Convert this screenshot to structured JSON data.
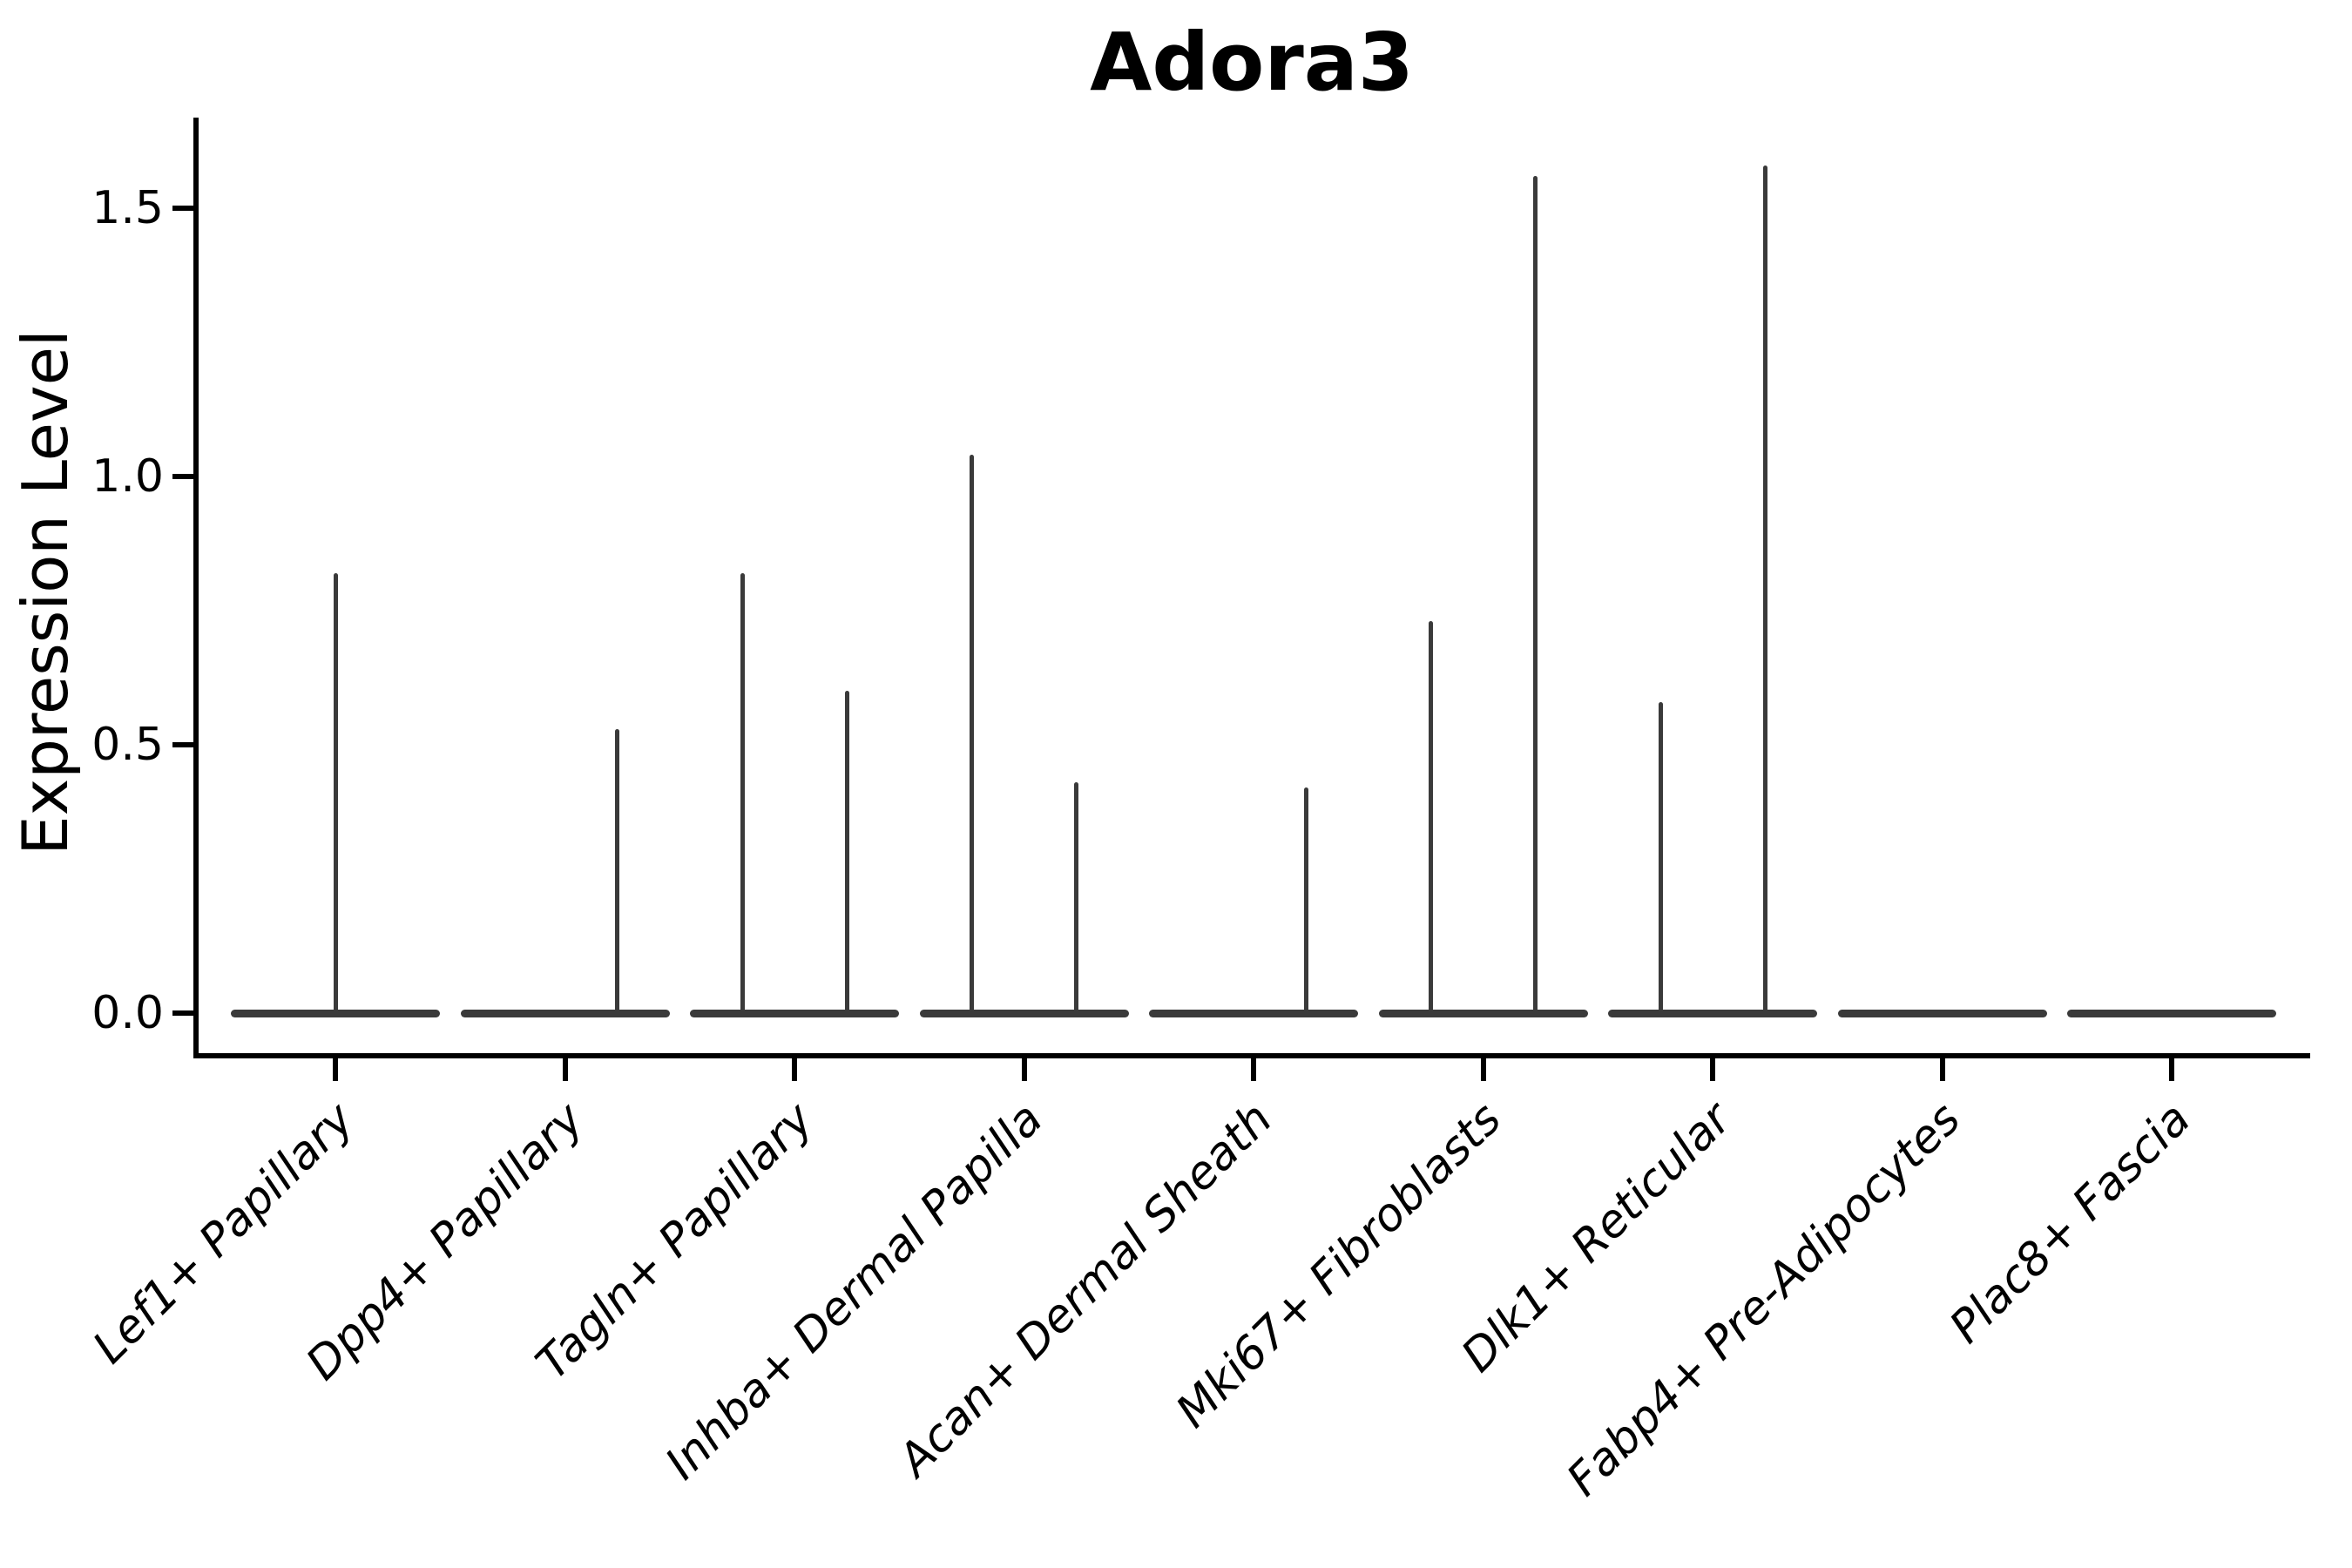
{
  "title": "Adora3",
  "chart_data": {
    "type": "violin",
    "title": "Adora3",
    "ylabel": "Expression Level",
    "xlabel": "",
    "y_ticks": [
      0.0,
      0.5,
      1.0,
      1.5
    ],
    "y_tick_labels": [
      "0.0",
      "0.5",
      "1.0",
      "1.5"
    ],
    "ylim": [
      -0.08,
      1.67
    ],
    "grid": false,
    "legend": false,
    "x_label_rotation_deg": 45,
    "x_label_style": "italic",
    "violin_color": "#3a3a3a",
    "axis_color": "#000000",
    "categories": [
      "Lef1+ Papillary",
      "Dpp4+ Papillary",
      "Tagln+ Papillary",
      "Inhba+ Dermal Papilla",
      "Acan+ Dermal Sheath",
      "Mki67+ Fibroblasts",
      "Dlk1+ Reticular",
      "Fabp4+ Pre-Adipocytes",
      "Plac8+ Fascia"
    ],
    "series": [
      {
        "category": "Lef1+ Papillary",
        "baseline_value": 0.0,
        "spikes": [
          {
            "pos": "center",
            "max": 0.82
          }
        ]
      },
      {
        "category": "Dpp4+ Papillary",
        "baseline_value": 0.0,
        "spikes": [
          {
            "pos": "right",
            "max": 0.53
          }
        ]
      },
      {
        "category": "Tagln+ Papillary",
        "baseline_value": 0.0,
        "spikes": [
          {
            "pos": "left",
            "max": 0.82
          },
          {
            "pos": "right",
            "max": 0.6
          }
        ]
      },
      {
        "category": "Inhba+ Dermal Papilla",
        "baseline_value": 0.0,
        "spikes": [
          {
            "pos": "left",
            "max": 1.04
          },
          {
            "pos": "right",
            "max": 0.43
          }
        ]
      },
      {
        "category": "Acan+ Dermal Sheath",
        "baseline_value": 0.0,
        "spikes": [
          {
            "pos": "right",
            "max": 0.42
          }
        ]
      },
      {
        "category": "Mki67+ Fibroblasts",
        "baseline_value": 0.0,
        "spikes": [
          {
            "pos": "left",
            "max": 0.73
          },
          {
            "pos": "right",
            "max": 1.56
          }
        ]
      },
      {
        "category": "Dlk1+ Reticular",
        "baseline_value": 0.0,
        "spikes": [
          {
            "pos": "left",
            "max": 0.58
          },
          {
            "pos": "right",
            "max": 1.58
          }
        ]
      },
      {
        "category": "Fabp4+ Pre-Adipocytes",
        "baseline_value": 0.0,
        "spikes": []
      },
      {
        "category": "Plac8+ Fascia",
        "baseline_value": 0.0,
        "spikes": []
      }
    ]
  }
}
